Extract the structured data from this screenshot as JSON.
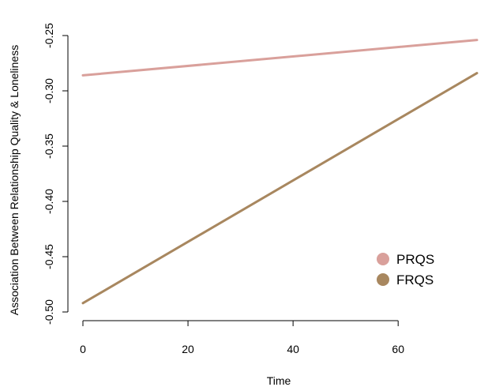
{
  "chart_data": {
    "type": "line",
    "title": "",
    "xlabel": "Time",
    "ylabel": "Association Between Relationship Quality & Loneliness",
    "xlim": [
      0,
      75
    ],
    "ylim": [
      -0.5,
      -0.25
    ],
    "xticks": [
      0,
      20,
      40,
      60
    ],
    "yticks": [
      -0.5,
      -0.45,
      -0.4,
      -0.35,
      -0.3,
      -0.25
    ],
    "xtick_labels": [
      "0",
      "20",
      "40",
      "60"
    ],
    "ytick_labels": [
      "-0.50",
      "-0.45",
      "-0.40",
      "-0.35",
      "-0.30",
      "-0.25"
    ],
    "grid": false,
    "legend_position": "bottom-right",
    "series": [
      {
        "name": "PRQS",
        "color": "#d9a09b",
        "x": [
          0,
          75
        ],
        "y": [
          -0.286,
          -0.254
        ]
      },
      {
        "name": "FRQS",
        "color": "#a8875f",
        "x": [
          0,
          75
        ],
        "y": [
          -0.492,
          -0.284
        ]
      }
    ]
  }
}
